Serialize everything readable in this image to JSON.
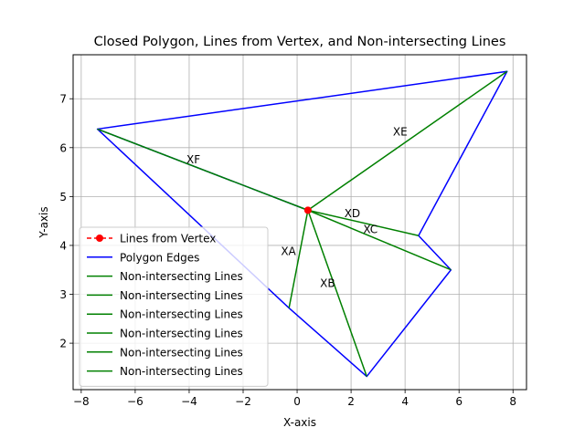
{
  "chart_data": {
    "type": "line",
    "title": "Closed Polygon, Lines from Vertex, and Non-intersecting Lines",
    "xlabel": "X-axis",
    "ylabel": "Y-axis",
    "xlim": [
      -8.3,
      8.5
    ],
    "ylim": [
      1.05,
      7.9
    ],
    "xticks": [
      -8,
      -6,
      -4,
      -2,
      0,
      2,
      4,
      6,
      8
    ],
    "yticks": [
      2,
      3,
      4,
      5,
      6,
      7
    ],
    "grid": true,
    "legend_position": "lower-left",
    "vertex": {
      "x": 0.4,
      "y": 4.72
    },
    "polygon": [
      {
        "x": 0.4,
        "y": 4.72
      },
      {
        "x": -7.4,
        "y": 6.38
      },
      {
        "x": 7.78,
        "y": 7.56
      },
      {
        "x": 4.5,
        "y": 4.2
      },
      {
        "x": 5.7,
        "y": 3.5
      },
      {
        "x": 2.58,
        "y": 1.32
      },
      {
        "x": -0.3,
        "y": 2.72
      },
      {
        "x": -7.4,
        "y": 6.38
      }
    ],
    "non_intersecting_lines": [
      {
        "from": {
          "x": 0.4,
          "y": 4.72
        },
        "to": {
          "x": -0.3,
          "y": 2.72
        }
      },
      {
        "from": {
          "x": 0.4,
          "y": 4.72
        },
        "to": {
          "x": 2.58,
          "y": 1.32
        }
      },
      {
        "from": {
          "x": 0.4,
          "y": 4.72
        },
        "to": {
          "x": 5.7,
          "y": 3.5
        }
      },
      {
        "from": {
          "x": 0.4,
          "y": 4.72
        },
        "to": {
          "x": 4.5,
          "y": 4.2
        }
      },
      {
        "from": {
          "x": 0.4,
          "y": 4.72
        },
        "to": {
          "x": 7.78,
          "y": 7.56
        }
      },
      {
        "from": {
          "x": 0.4,
          "y": 4.72
        },
        "to": {
          "x": -7.4,
          "y": 6.38
        }
      }
    ],
    "annotations": [
      {
        "text": "XA",
        "x": -0.6,
        "y": 3.8
      },
      {
        "text": "XB",
        "x": 0.85,
        "y": 3.15
      },
      {
        "text": "XC",
        "x": 2.45,
        "y": 4.25
      },
      {
        "text": "XD",
        "x": 1.75,
        "y": 4.58
      },
      {
        "text": "XE",
        "x": 3.55,
        "y": 6.25
      },
      {
        "text": "XF",
        "x": -4.1,
        "y": 5.68
      }
    ],
    "legend": [
      "Lines from Vertex",
      "Polygon Edges",
      "Non-intersecting Lines",
      "Non-intersecting Lines",
      "Non-intersecting Lines",
      "Non-intersecting Lines",
      "Non-intersecting Lines",
      "Non-intersecting Lines"
    ],
    "colors": {
      "vertex": "#ff0000",
      "polygon": "#0000ff",
      "non_intersecting": "#008000",
      "grid": "#b0b0b0",
      "axes": "#000000"
    }
  }
}
